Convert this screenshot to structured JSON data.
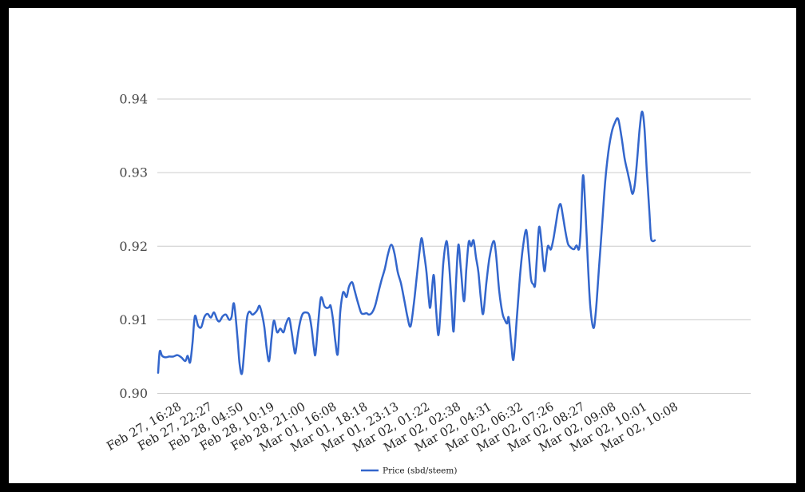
{
  "colors": {
    "frame": "#000000",
    "background": "#ffffff",
    "grid": "#cccccc",
    "line": "#3366cc",
    "y_label": "#454545",
    "x_label": "#262626"
  },
  "legend": {
    "position": "bottom"
  },
  "chart_data": {
    "type": "line",
    "title": "",
    "xlabel": "",
    "ylabel": "",
    "grid": true,
    "legend_position": "bottom",
    "ylim": [
      0.9,
      0.94
    ],
    "y_ticks": [
      {
        "value": 0.9,
        "label": "0.90"
      },
      {
        "value": 0.91,
        "label": "0.91"
      },
      {
        "value": 0.92,
        "label": "0.92"
      },
      {
        "value": 0.93,
        "label": "0.93"
      },
      {
        "value": 0.94,
        "label": "0.94"
      }
    ],
    "x_tick_labels": [
      "Feb 27, 16:28",
      "Feb 27, 22:27",
      "Feb 28, 04:50",
      "Feb 28, 10:19",
      "Feb 28, 21:00",
      "Mar 01, 16:08",
      "Mar 01, 18:18",
      "Mar 01, 23:13",
      "Mar 02, 01:22",
      "Mar 02, 02:38",
      "Mar 02, 04:31",
      "Mar 02, 06:32",
      "Mar 02, 07:26",
      "Mar 02, 08:27",
      "Mar 02, 09:08",
      "Mar 02, 10:01",
      "Mar 02, 10:08"
    ],
    "series": [
      {
        "name": "Price (sbd/steem)",
        "color": "#3366cc",
        "points": [
          [
            0.0,
            0.9028
          ],
          [
            0.0032,
            0.9057
          ],
          [
            0.008,
            0.9051
          ],
          [
            0.0145,
            0.9049
          ],
          [
            0.0225,
            0.905
          ],
          [
            0.0305,
            0.905
          ],
          [
            0.0386,
            0.9052
          ],
          [
            0.0466,
            0.9049
          ],
          [
            0.0547,
            0.9044
          ],
          [
            0.0595,
            0.9051
          ],
          [
            0.0643,
            0.9042
          ],
          [
            0.0691,
            0.9068
          ],
          [
            0.074,
            0.9105
          ],
          [
            0.0804,
            0.9092
          ],
          [
            0.0868,
            0.909
          ],
          [
            0.0932,
            0.9104
          ],
          [
            0.0997,
            0.9108
          ],
          [
            0.1061,
            0.9103
          ],
          [
            0.1125,
            0.911
          ],
          [
            0.119,
            0.91
          ],
          [
            0.1238,
            0.9098
          ],
          [
            0.1302,
            0.9105
          ],
          [
            0.1367,
            0.9107
          ],
          [
            0.1431,
            0.91
          ],
          [
            0.1479,
            0.9104
          ],
          [
            0.1527,
            0.9122
          ],
          [
            0.1592,
            0.908
          ],
          [
            0.164,
            0.904
          ],
          [
            0.1688,
            0.9027
          ],
          [
            0.1736,
            0.906
          ],
          [
            0.1785,
            0.91
          ],
          [
            0.1833,
            0.9111
          ],
          [
            0.1897,
            0.9107
          ],
          [
            0.1945,
            0.9109
          ],
          [
            0.1994,
            0.9113
          ],
          [
            0.2042,
            0.9119
          ],
          [
            0.209,
            0.9108
          ],
          [
            0.2138,
            0.909
          ],
          [
            0.2186,
            0.906
          ],
          [
            0.2235,
            0.9044
          ],
          [
            0.2283,
            0.9075
          ],
          [
            0.2331,
            0.9099
          ],
          [
            0.2395,
            0.9083
          ],
          [
            0.246,
            0.9088
          ],
          [
            0.2524,
            0.9083
          ],
          [
            0.2572,
            0.9094
          ],
          [
            0.2637,
            0.9102
          ],
          [
            0.2685,
            0.9085
          ],
          [
            0.2733,
            0.9062
          ],
          [
            0.2765,
            0.9055
          ],
          [
            0.2814,
            0.908
          ],
          [
            0.2862,
            0.9098
          ],
          [
            0.291,
            0.9108
          ],
          [
            0.2974,
            0.911
          ],
          [
            0.3039,
            0.9107
          ],
          [
            0.3087,
            0.909
          ],
          [
            0.3135,
            0.9062
          ],
          [
            0.3167,
            0.9053
          ],
          [
            0.3215,
            0.909
          ],
          [
            0.3264,
            0.9125
          ],
          [
            0.3296,
            0.913
          ],
          [
            0.3344,
            0.9119
          ],
          [
            0.3392,
            0.9116
          ],
          [
            0.3441,
            0.9117
          ],
          [
            0.3473,
            0.9119
          ],
          [
            0.3521,
            0.91
          ],
          [
            0.3569,
            0.907
          ],
          [
            0.3617,
            0.9054
          ],
          [
            0.3666,
            0.911
          ],
          [
            0.3714,
            0.9135
          ],
          [
            0.3746,
            0.9137
          ],
          [
            0.3794,
            0.9131
          ],
          [
            0.3842,
            0.9145
          ],
          [
            0.3907,
            0.9151
          ],
          [
            0.3955,
            0.914
          ],
          [
            0.4019,
            0.9124
          ],
          [
            0.4084,
            0.911
          ],
          [
            0.4132,
            0.9108
          ],
          [
            0.4196,
            0.9109
          ],
          [
            0.4244,
            0.9107
          ],
          [
            0.4309,
            0.911
          ],
          [
            0.4373,
            0.912
          ],
          [
            0.4437,
            0.9138
          ],
          [
            0.4502,
            0.9155
          ],
          [
            0.4566,
            0.917
          ],
          [
            0.463,
            0.919
          ],
          [
            0.4695,
            0.9202
          ],
          [
            0.4759,
            0.919
          ],
          [
            0.4823,
            0.9165
          ],
          [
            0.4887,
            0.915
          ],
          [
            0.4952,
            0.9128
          ],
          [
            0.5016,
            0.9105
          ],
          [
            0.508,
            0.9091
          ],
          [
            0.5145,
            0.912
          ],
          [
            0.5209,
            0.916
          ],
          [
            0.5257,
            0.919
          ],
          [
            0.5305,
            0.9211
          ],
          [
            0.5354,
            0.919
          ],
          [
            0.5402,
            0.9165
          ],
          [
            0.545,
            0.9128
          ],
          [
            0.5482,
            0.9118
          ],
          [
            0.5547,
            0.9161
          ],
          [
            0.5595,
            0.9115
          ],
          [
            0.5643,
            0.9079
          ],
          [
            0.5691,
            0.912
          ],
          [
            0.574,
            0.9176
          ],
          [
            0.5804,
            0.9207
          ],
          [
            0.5852,
            0.918
          ],
          [
            0.59,
            0.9132
          ],
          [
            0.5949,
            0.9084
          ],
          [
            0.5997,
            0.915
          ],
          [
            0.6045,
            0.9202
          ],
          [
            0.6093,
            0.917
          ],
          [
            0.6158,
            0.9125
          ],
          [
            0.6206,
            0.917
          ],
          [
            0.6254,
            0.9206
          ],
          [
            0.6302,
            0.92
          ],
          [
            0.635,
            0.9208
          ],
          [
            0.6399,
            0.9185
          ],
          [
            0.6447,
            0.9165
          ],
          [
            0.6495,
            0.913
          ],
          [
            0.6543,
            0.9108
          ],
          [
            0.6608,
            0.915
          ],
          [
            0.6672,
            0.9185
          ],
          [
            0.6752,
            0.9207
          ],
          [
            0.6801,
            0.919
          ],
          [
            0.6865,
            0.914
          ],
          [
            0.6929,
            0.911
          ],
          [
            0.6977,
            0.91
          ],
          [
            0.7026,
            0.9095
          ],
          [
            0.7058,
            0.9103
          ],
          [
            0.7106,
            0.907
          ],
          [
            0.7154,
            0.9046
          ],
          [
            0.7219,
            0.91
          ],
          [
            0.7283,
            0.9158
          ],
          [
            0.7347,
            0.92
          ],
          [
            0.7412,
            0.9222
          ],
          [
            0.746,
            0.919
          ],
          [
            0.7508,
            0.9155
          ],
          [
            0.7556,
            0.9148
          ],
          [
            0.7588,
            0.9147
          ],
          [
            0.7621,
            0.918
          ],
          [
            0.7669,
            0.9226
          ],
          [
            0.7717,
            0.9205
          ],
          [
            0.7749,
            0.918
          ],
          [
            0.7781,
            0.9166
          ],
          [
            0.7814,
            0.9185
          ],
          [
            0.7846,
            0.92
          ],
          [
            0.7878,
            0.9198
          ],
          [
            0.791,
            0.9196
          ],
          [
            0.7958,
            0.921
          ],
          [
            0.8006,
            0.923
          ],
          [
            0.8055,
            0.925
          ],
          [
            0.8103,
            0.9257
          ],
          [
            0.8151,
            0.924
          ],
          [
            0.8199,
            0.922
          ],
          [
            0.8247,
            0.9204
          ],
          [
            0.828,
            0.92
          ],
          [
            0.8328,
            0.9197
          ],
          [
            0.8376,
            0.9196
          ],
          [
            0.8424,
            0.9201
          ],
          [
            0.8472,
            0.9196
          ],
          [
            0.8505,
            0.922
          ],
          [
            0.8553,
            0.9296
          ],
          [
            0.8601,
            0.925
          ],
          [
            0.865,
            0.918
          ],
          [
            0.8698,
            0.912
          ],
          [
            0.8762,
            0.9089
          ],
          [
            0.881,
            0.911
          ],
          [
            0.8875,
            0.917
          ],
          [
            0.8939,
            0.923
          ],
          [
            0.9003,
            0.929
          ],
          [
            0.9068,
            0.933
          ],
          [
            0.9132,
            0.9355
          ],
          [
            0.9196,
            0.9368
          ],
          [
            0.926,
            0.9373
          ],
          [
            0.9325,
            0.935
          ],
          [
            0.9389,
            0.932
          ],
          [
            0.9453,
            0.93
          ],
          [
            0.9502,
            0.9285
          ],
          [
            0.955,
            0.9271
          ],
          [
            0.9598,
            0.9285
          ],
          [
            0.9646,
            0.932
          ],
          [
            0.9695,
            0.936
          ],
          [
            0.9743,
            0.9383
          ],
          [
            0.9791,
            0.936
          ],
          [
            0.9839,
            0.93
          ],
          [
            0.9888,
            0.9249
          ],
          [
            0.992,
            0.9213
          ],
          [
            0.9952,
            0.9207
          ],
          [
            1.0,
            0.9208
          ]
        ]
      }
    ]
  }
}
